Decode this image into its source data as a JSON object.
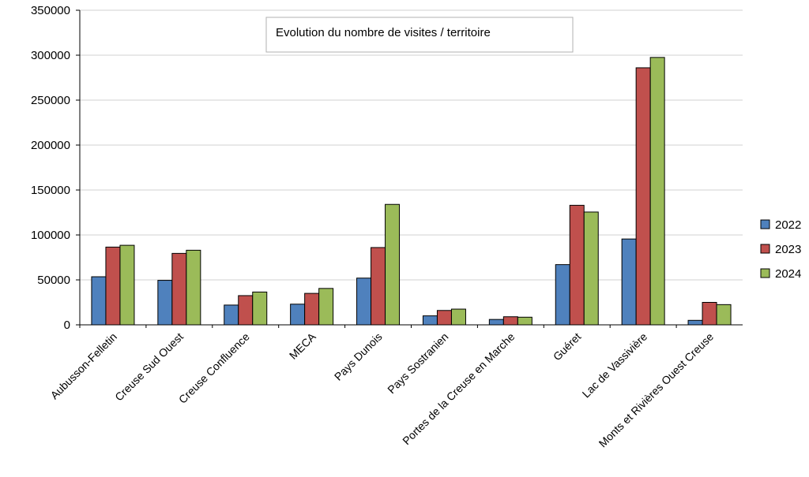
{
  "chart_data": {
    "type": "bar",
    "title": "Evolution du nombre de visites / territoire",
    "xlabel": "",
    "ylabel": "",
    "ylim": [
      0,
      350000
    ],
    "yticks": [
      0,
      50000,
      100000,
      150000,
      200000,
      250000,
      300000,
      350000
    ],
    "ytick_labels": [
      "0",
      "50000",
      "100000",
      "150000",
      "200000",
      "250000",
      "300000",
      "350000"
    ],
    "grid": true,
    "legend_position": "right",
    "categories": [
      "Aubusson-Felletin",
      "Creuse Sud Ouest",
      "Creuse Confluence",
      "MECA",
      "Pays Dunois",
      "Pays Sostranien",
      "Portes de la Creuse en Marche",
      "Guéret",
      "Lac de Vassivière",
      "Monts et Rivières Ouest Creuse"
    ],
    "series": [
      {
        "name": "2022",
        "color": "#4f81bd",
        "values": [
          53500,
          49500,
          22000,
          23000,
          52000,
          10000,
          6000,
          67000,
          95500,
          5000
        ]
      },
      {
        "name": "2023",
        "color": "#c0504d",
        "values": [
          86500,
          79500,
          32500,
          35000,
          86000,
          16000,
          9000,
          133000,
          286000,
          25000
        ]
      },
      {
        "name": "2024",
        "color": "#9bbb59",
        "values": [
          88500,
          83000,
          36500,
          40500,
          134000,
          17500,
          8500,
          125500,
          297500,
          22500
        ]
      }
    ]
  }
}
